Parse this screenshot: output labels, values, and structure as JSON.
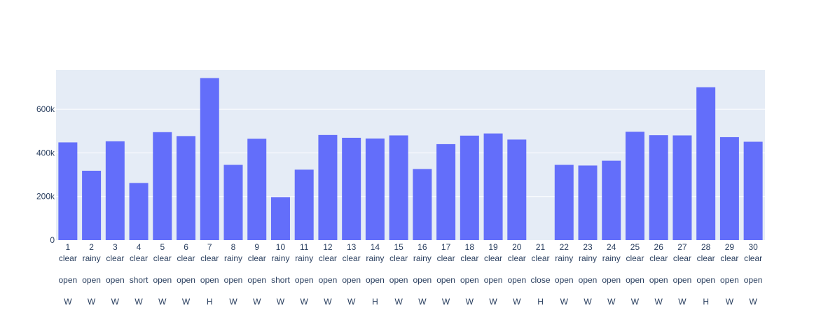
{
  "chart_data": {
    "type": "bar",
    "title": "",
    "xlabel": "",
    "ylabel": "",
    "ylim": [
      0,
      780000
    ],
    "yticks": [
      0,
      200000,
      400000,
      600000
    ],
    "ytick_labels": [
      "0",
      "200k",
      "400k",
      "600k"
    ],
    "grid": true,
    "legend": "none",
    "categories": [
      {
        "day": "1",
        "weather": "clear",
        "status": "open",
        "type": "W"
      },
      {
        "day": "2",
        "weather": "rainy",
        "status": "open",
        "type": "W"
      },
      {
        "day": "3",
        "weather": "clear",
        "status": "open",
        "type": "W"
      },
      {
        "day": "4",
        "weather": "clear",
        "status": "short",
        "type": "W"
      },
      {
        "day": "5",
        "weather": "clear",
        "status": "open",
        "type": "W"
      },
      {
        "day": "6",
        "weather": "clear",
        "status": "open",
        "type": "W"
      },
      {
        "day": "7",
        "weather": "clear",
        "status": "open",
        "type": "H"
      },
      {
        "day": "8",
        "weather": "rainy",
        "status": "open",
        "type": "W"
      },
      {
        "day": "9",
        "weather": "clear",
        "status": "open",
        "type": "W"
      },
      {
        "day": "10",
        "weather": "rainy",
        "status": "short",
        "type": "W"
      },
      {
        "day": "11",
        "weather": "rainy",
        "status": "open",
        "type": "W"
      },
      {
        "day": "12",
        "weather": "clear",
        "status": "open",
        "type": "W"
      },
      {
        "day": "13",
        "weather": "clear",
        "status": "open",
        "type": "W"
      },
      {
        "day": "14",
        "weather": "rainy",
        "status": "open",
        "type": "H"
      },
      {
        "day": "15",
        "weather": "clear",
        "status": "open",
        "type": "W"
      },
      {
        "day": "16",
        "weather": "rainy",
        "status": "open",
        "type": "W"
      },
      {
        "day": "17",
        "weather": "clear",
        "status": "open",
        "type": "W"
      },
      {
        "day": "18",
        "weather": "clear",
        "status": "open",
        "type": "W"
      },
      {
        "day": "19",
        "weather": "clear",
        "status": "open",
        "type": "W"
      },
      {
        "day": "20",
        "weather": "clear",
        "status": "open",
        "type": "W"
      },
      {
        "day": "21",
        "weather": "clear",
        "status": "close",
        "type": "H"
      },
      {
        "day": "22",
        "weather": "rainy",
        "status": "open",
        "type": "W"
      },
      {
        "day": "23",
        "weather": "rainy",
        "status": "open",
        "type": "W"
      },
      {
        "day": "24",
        "weather": "rainy",
        "status": "open",
        "type": "W"
      },
      {
        "day": "25",
        "weather": "clear",
        "status": "open",
        "type": "W"
      },
      {
        "day": "26",
        "weather": "clear",
        "status": "open",
        "type": "W"
      },
      {
        "day": "27",
        "weather": "clear",
        "status": "open",
        "type": "W"
      },
      {
        "day": "28",
        "weather": "clear",
        "status": "open",
        "type": "H"
      },
      {
        "day": "29",
        "weather": "clear",
        "status": "open",
        "type": "W"
      },
      {
        "day": "30",
        "weather": "clear",
        "status": "open",
        "type": "W"
      }
    ],
    "values": [
      448000,
      318000,
      453000,
      262000,
      495000,
      477000,
      743000,
      345000,
      465000,
      197000,
      323000,
      482000,
      469000,
      466000,
      480000,
      326000,
      440000,
      479000,
      489000,
      461000,
      0,
      345000,
      342000,
      364000,
      497000,
      481000,
      480000,
      701000,
      472000,
      451000
    ],
    "colors": {
      "bar": "#636efa",
      "plot_bg": "#e5ecf6",
      "grid": "#ffffff",
      "text": "#2a3f5f"
    }
  }
}
